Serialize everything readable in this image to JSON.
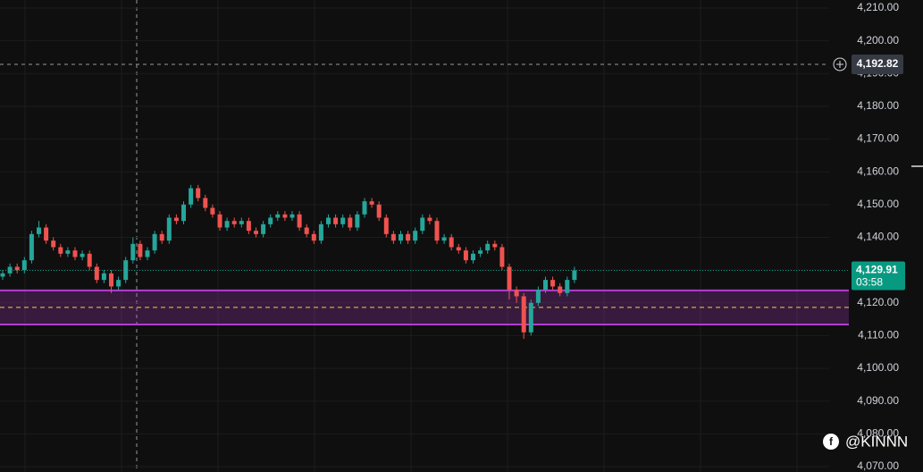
{
  "chart_data": {
    "type": "candlestick",
    "open": [
      4128,
      4129,
      4131,
      4130,
      4133,
      4141,
      4143,
      4139,
      4137,
      4135,
      4136,
      4134,
      4135,
      4131,
      4127,
      4129,
      4125,
      4127,
      4133,
      4138,
      4134,
      4136,
      4141,
      4139,
      4146,
      4145,
      4150,
      4155,
      4152,
      4149,
      4147,
      4143,
      4145,
      4144,
      4145,
      4142,
      4141,
      4144,
      4146,
      4147,
      4146,
      4147,
      4143,
      4141,
      4139,
      4144,
      4146,
      4144,
      4146,
      4143,
      4147,
      4151,
      4150,
      4146,
      4141,
      4139,
      4141,
      4139,
      4142,
      4146,
      4145,
      4139,
      4140,
      4137,
      4136,
      4133,
      4135,
      4136,
      4138,
      4137,
      4131,
      4124,
      4122,
      4111,
      4120,
      4124,
      4127,
      4125,
      4123,
      4127
    ],
    "high": [
      4130,
      4132,
      4132,
      4134,
      4142,
      4145,
      4144,
      4140,
      4138,
      4137,
      4137,
      4136,
      4136,
      4132,
      4130,
      4130,
      4128,
      4134,
      4140,
      4139,
      4137,
      4142,
      4142,
      4147,
      4147,
      4151,
      4156,
      4156,
      4153,
      4150,
      4148,
      4146,
      4146,
      4146,
      4146,
      4143,
      4145,
      4147,
      4148,
      4148,
      4148,
      4148,
      4144,
      4142,
      4145,
      4147,
      4147,
      4147,
      4147,
      4148,
      4152,
      4152,
      4151,
      4147,
      4142,
      4142,
      4142,
      4143,
      4147,
      4147,
      4146,
      4141,
      4141,
      4138,
      4137,
      4136,
      4137,
      4139,
      4139,
      4138,
      4132,
      4125,
      4123,
      4121,
      4125,
      4128,
      4128,
      4126,
      4128,
      4131
    ],
    "low": [
      4127,
      4128,
      4129,
      4129,
      4132,
      4140,
      4138,
      4136,
      4134,
      4134,
      4133,
      4133,
      4130,
      4126,
      4126,
      4123,
      4124,
      4126,
      4132,
      4133,
      4133,
      4135,
      4138,
      4138,
      4144,
      4144,
      4149,
      4151,
      4148,
      4146,
      4142,
      4142,
      4143,
      4143,
      4141,
      4140,
      4140,
      4143,
      4145,
      4145,
      4145,
      4142,
      4140,
      4138,
      4138,
      4143,
      4143,
      4143,
      4142,
      4142,
      4146,
      4149,
      4145,
      4140,
      4138,
      4138,
      4138,
      4138,
      4141,
      4144,
      4138,
      4138,
      4136,
      4135,
      4132,
      4132,
      4134,
      4135,
      4136,
      4130,
      4121,
      4120,
      4109,
      4110,
      4119,
      4123,
      4124,
      4122,
      4122,
      4126
    ],
    "close": [
      4129,
      4131,
      4130,
      4133,
      4141,
      4143,
      4139,
      4137,
      4135,
      4136,
      4134,
      4135,
      4131,
      4127,
      4129,
      4125,
      4127,
      4133,
      4138,
      4134,
      4136,
      4141,
      4139,
      4146,
      4145,
      4150,
      4155,
      4152,
      4149,
      4147,
      4143,
      4145,
      4144,
      4145,
      4142,
      4141,
      4144,
      4146,
      4147,
      4146,
      4147,
      4143,
      4141,
      4139,
      4144,
      4146,
      4144,
      4146,
      4143,
      4147,
      4151,
      4150,
      4146,
      4141,
      4139,
      4141,
      4139,
      4142,
      4146,
      4145,
      4139,
      4140,
      4137,
      4136,
      4133,
      4135,
      4136,
      4138,
      4137,
      4131,
      4124,
      4122,
      4111,
      4120,
      4124,
      4127,
      4125,
      4123,
      4127,
      4129.91
    ],
    "up_color": "#26a69a",
    "down_color": "#ef5350",
    "ylim": [
      4070,
      4210
    ],
    "yticks": [
      {
        "value": 4070,
        "label": "4,070.00"
      },
      {
        "value": 4080,
        "label": "4,080.00"
      },
      {
        "value": 4090,
        "label": "4,090.00"
      },
      {
        "value": 4100,
        "label": "4,100.00"
      },
      {
        "value": 4110,
        "label": "4,110.00"
      },
      {
        "value": 4120,
        "label": "4,120.00"
      },
      {
        "value": 4130,
        "label": "4,130.00"
      },
      {
        "value": 4140,
        "label": "4,140.00"
      },
      {
        "value": 4150,
        "label": "4,150.00"
      },
      {
        "value": 4160,
        "label": "4,160.00"
      },
      {
        "value": 4170,
        "label": "4,170.00"
      },
      {
        "value": 4180,
        "label": "4,180.00"
      },
      {
        "value": 4190,
        "label": "4,190.00"
      },
      {
        "value": 4200,
        "label": "4,200.00"
      },
      {
        "value": 4210,
        "label": "4,210.00"
      }
    ],
    "grid": true,
    "zone": {
      "high": 4123.8,
      "low": 4113.4,
      "midline": 4118.6,
      "color": "#b23dd1"
    },
    "crosshair": {
      "value": 4192.82,
      "label": "4,192.82"
    },
    "last_price": {
      "value": 4129.91,
      "label": "4,129.91",
      "color": "#089981"
    },
    "countdown": "03:58",
    "watermark": "@KINNN"
  }
}
